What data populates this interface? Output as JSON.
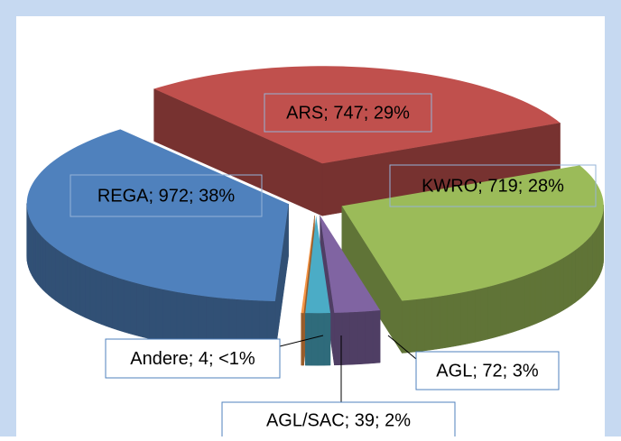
{
  "chart_data": {
    "type": "pie",
    "categories": [
      "ARS",
      "KWRO",
      "AGL",
      "AGL/SAC",
      "Andere",
      "REGA"
    ],
    "values": [
      747,
      719,
      72,
      39,
      4,
      972
    ],
    "value_labels": [
      "ARS; 747; 29%",
      "KWRO; 719; 28%",
      "AGL; 72; 3%",
      "AGL/SAC; 39; 2%",
      "Andere; 4; <1%",
      "REGA; 972; 38%"
    ],
    "colors": [
      "#c0504d",
      "#9bbb59",
      "#8064a2",
      "#4bacc6",
      "#f79646",
      "#4f81bd"
    ]
  }
}
